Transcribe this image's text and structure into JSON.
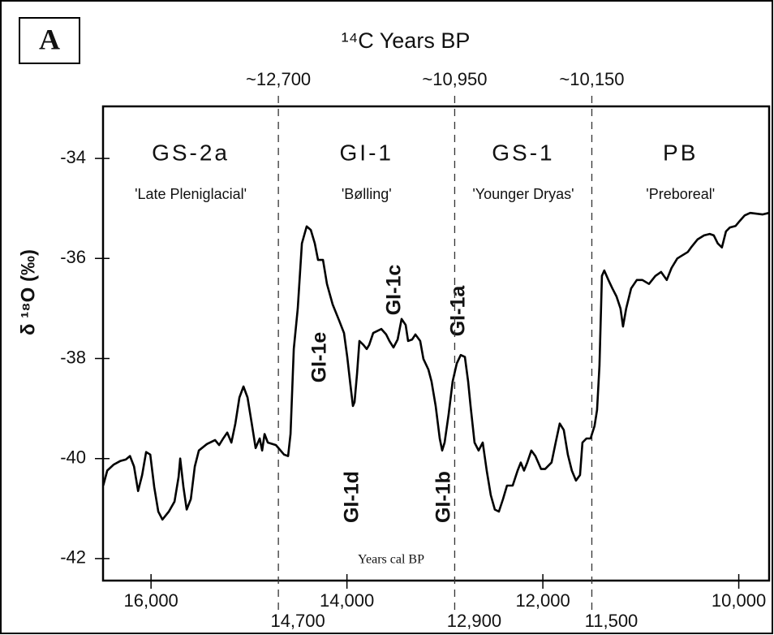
{
  "chart_data": {
    "type": "line",
    "panel_label": "A",
    "title": "¹⁴C Years BP",
    "ylabel": "δ ¹⁸O (‰)",
    "xlabel": "Years cal BP",
    "xlim": [
      16490,
      9690
    ],
    "xticks": [
      {
        "value": 16000,
        "label": "16,000"
      },
      {
        "value": 14000,
        "label": "14,000"
      },
      {
        "value": 12000,
        "label": "12,000"
      },
      {
        "value": 10000,
        "label": "10,000"
      }
    ],
    "ylim": [
      -42.44,
      -32.96
    ],
    "yticks": [
      -34,
      -36,
      -38,
      -40,
      -42
    ],
    "boundaries": [
      {
        "value": 14700,
        "label": "14,700",
        "c14_label": "~12,700"
      },
      {
        "value": 12900,
        "label": "12,900",
        "c14_label": "~10,950"
      },
      {
        "value": 11500,
        "label": "11,500",
        "c14_label": "~10,150"
      }
    ],
    "zones": [
      {
        "name": "GS-2a",
        "subtitle": "'Late Pleniglacial'"
      },
      {
        "name": "GI-1",
        "subtitle": "'Bølling'"
      },
      {
        "name": "GS-1",
        "subtitle": "'Younger Dryas'"
      },
      {
        "name": "PB",
        "subtitle": "'Preboreal'"
      }
    ],
    "annotations": [
      "GI-1e",
      "GI-1d",
      "GI-1c",
      "GI-1b",
      "GI-1a"
    ],
    "color": "#000000",
    "x": [
      16488,
      16447,
      16381,
      16315,
      16257,
      16215,
      16174,
      16132,
      16091,
      16050,
      16008,
      15967,
      15926,
      15884,
      15818,
      15760,
      15719,
      15702,
      15669,
      15636,
      15594,
      15553,
      15512,
      15429,
      15346,
      15305,
      15263,
      15222,
      15180,
      15139,
      15098,
      15056,
      15015,
      14974,
      14932,
      14891,
      14866,
      14841,
      14808,
      14725,
      14642,
      14601,
      14576,
      14543,
      14502,
      14460,
      14411,
      14369,
      14328,
      14295,
      14245,
      14204,
      14146,
      14080,
      14030,
      13997,
      13964,
      13939,
      13922,
      13897,
      13873,
      13831,
      13798,
      13773,
      13732,
      13690,
      13649,
      13599,
      13566,
      13525,
      13483,
      13442,
      13401,
      13376,
      13334,
      13301,
      13252,
      13219,
      13169,
      13136,
      13094,
      13053,
      13028,
      13003,
      12962,
      12921,
      12879,
      12838,
      12796,
      12763,
      12738,
      12697,
      12656,
      12614,
      12573,
      12532,
      12490,
      12449,
      12407,
      12366,
      12308,
      12258,
      12225,
      12192,
      12159,
      12118,
      12076,
      12018,
      11977,
      11911,
      11869,
      11828,
      11786,
      11745,
      11704,
      11662,
      11621,
      11596,
      11555,
      11513,
      11472,
      11447,
      11422,
      11397,
      11373,
      11331,
      11290,
      11248,
      11207,
      11182,
      11149,
      11099,
      11041,
      10984,
      10917,
      10851,
      10793,
      10735,
      10686,
      10628,
      10586,
      10520,
      10487,
      10421,
      10354,
      10296,
      10255,
      10214,
      10172,
      10131,
      10090,
      10032,
      9990,
      9940,
      9883,
      9758,
      9692
    ],
    "values": [
      -40.54,
      -40.24,
      -40.12,
      -40.05,
      -40.02,
      -39.95,
      -40.16,
      -40.65,
      -40.33,
      -39.87,
      -39.92,
      -40.57,
      -41.06,
      -41.22,
      -41.06,
      -40.86,
      -40.37,
      -40.0,
      -40.57,
      -41.02,
      -40.81,
      -40.16,
      -39.84,
      -39.71,
      -39.63,
      -39.73,
      -39.6,
      -39.48,
      -39.68,
      -39.3,
      -38.78,
      -38.56,
      -38.78,
      -39.27,
      -39.79,
      -39.6,
      -39.84,
      -39.51,
      -39.68,
      -39.73,
      -39.92,
      -39.95,
      -39.51,
      -37.81,
      -37.0,
      -35.7,
      -35.36,
      -35.43,
      -35.7,
      -36.03,
      -36.03,
      -36.51,
      -36.92,
      -37.24,
      -37.49,
      -37.97,
      -38.54,
      -38.95,
      -38.87,
      -38.3,
      -37.65,
      -37.73,
      -37.81,
      -37.73,
      -37.49,
      -37.45,
      -37.41,
      -37.52,
      -37.65,
      -37.78,
      -37.62,
      -37.21,
      -37.33,
      -37.65,
      -37.62,
      -37.52,
      -37.65,
      -38.01,
      -38.22,
      -38.46,
      -38.95,
      -39.6,
      -39.84,
      -39.68,
      -39.11,
      -38.46,
      -38.1,
      -37.93,
      -37.97,
      -38.46,
      -38.95,
      -39.68,
      -39.84,
      -39.68,
      -40.24,
      -40.73,
      -41.02,
      -41.06,
      -40.81,
      -40.54,
      -40.54,
      -40.24,
      -40.08,
      -40.24,
      -40.08,
      -39.84,
      -39.95,
      -40.21,
      -40.21,
      -40.08,
      -39.68,
      -39.3,
      -39.43,
      -39.92,
      -40.24,
      -40.44,
      -40.33,
      -39.68,
      -39.6,
      -39.6,
      -39.35,
      -39.03,
      -38.14,
      -36.35,
      -36.24,
      -36.43,
      -36.6,
      -36.76,
      -37.0,
      -37.36,
      -37.0,
      -36.6,
      -36.43,
      -36.43,
      -36.51,
      -36.35,
      -36.27,
      -36.43,
      -36.19,
      -36.0,
      -35.95,
      -35.87,
      -35.78,
      -35.62,
      -35.54,
      -35.51,
      -35.54,
      -35.7,
      -35.78,
      -35.46,
      -35.38,
      -35.35,
      -35.25,
      -35.14,
      -35.09,
      -35.12,
      -35.09
    ]
  }
}
